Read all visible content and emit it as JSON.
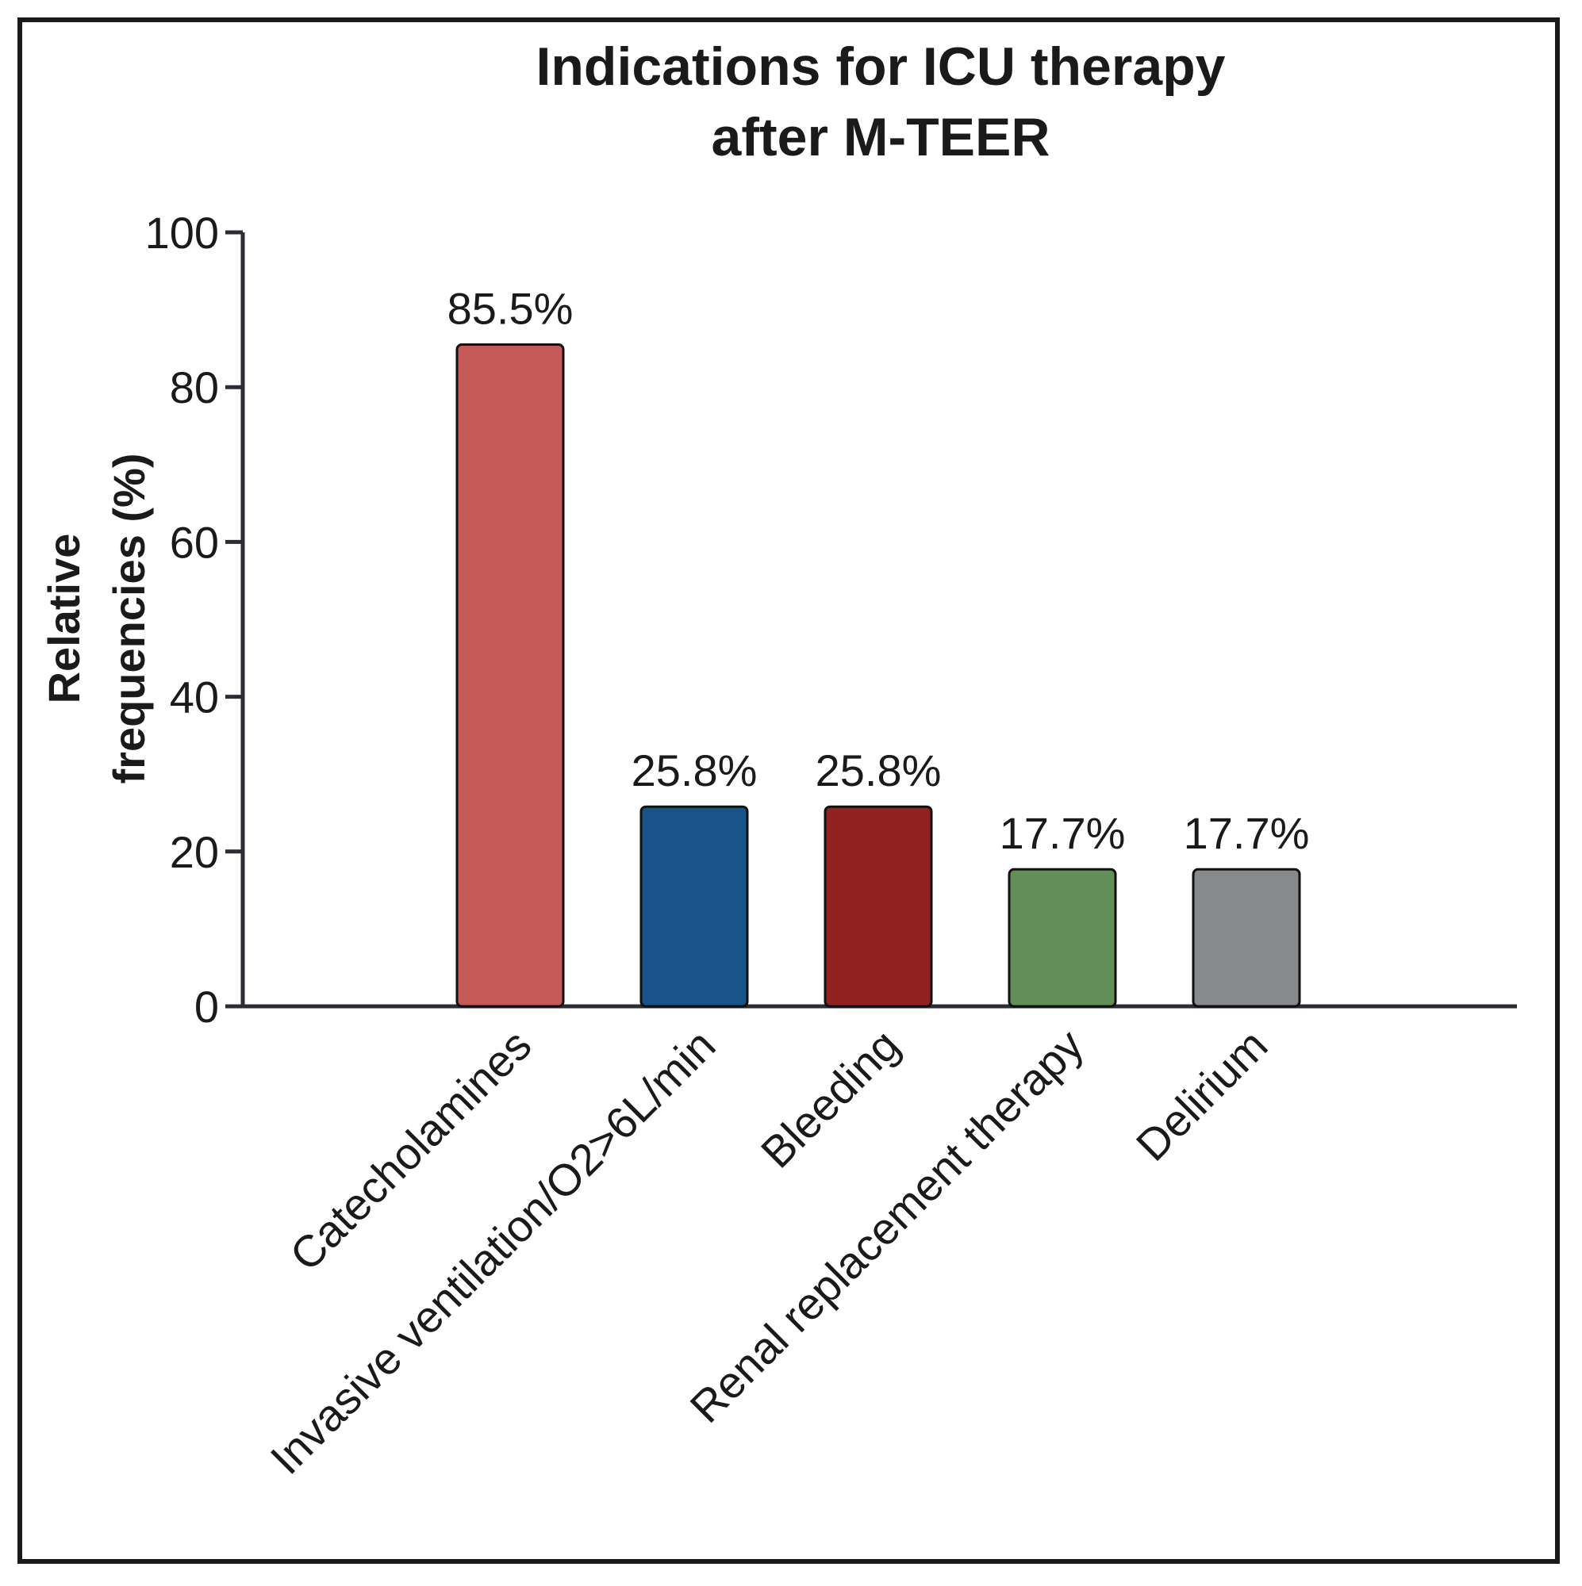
{
  "chart_data": {
    "type": "bar",
    "title": [
      "Indications for ICU therapy",
      "after M-TEER"
    ],
    "ylabel": [
      "Relative",
      "frequencies (%)"
    ],
    "xlabel": "",
    "categories": [
      "Catecholamines",
      "Invasive ventilation/O2>6L/min",
      "Bleeding",
      "Renal replacement therapy",
      "Delirium"
    ],
    "values": [
      85.5,
      25.8,
      25.8,
      17.7,
      17.7
    ],
    "value_labels": [
      "85.5%",
      "25.8%",
      "25.8%",
      "17.7%",
      "17.7%"
    ],
    "colors": [
      "#c45958",
      "#18548a",
      "#922222",
      "#628f58",
      "#868a8c"
    ],
    "ylim": [
      0,
      100
    ],
    "yticks": [
      0,
      20,
      40,
      60,
      80,
      100
    ],
    "grid": false,
    "legend": "none"
  }
}
